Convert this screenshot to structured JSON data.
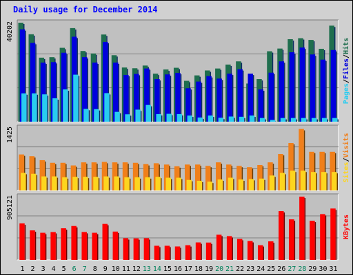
{
  "title": "Daily usage for December 2014",
  "title_color": "#0000ff",
  "colors": {
    "hits": "#1f6e4e",
    "files": "#0000dd",
    "pages": "#29ccf0",
    "visits": "#f07f1a",
    "sites": "#fdd51f",
    "kbytes": "#ff0000",
    "panel_bg": "#c0c0c0",
    "grid": "#808080"
  },
  "chart_data": [
    {
      "type": "bar",
      "title": "Daily usage for December 2014",
      "categories": [
        "1",
        "2",
        "3",
        "4",
        "5",
        "6",
        "7",
        "8",
        "9",
        "10",
        "11",
        "12",
        "13",
        "14",
        "15",
        "16",
        "17",
        "18",
        "19",
        "20",
        "21",
        "22",
        "23",
        "24",
        "25",
        "26",
        "27",
        "28",
        "29",
        "30",
        "31"
      ],
      "weekend_days": [
        "6",
        "7",
        "13",
        "14",
        "20",
        "21",
        "27",
        "28"
      ],
      "ymax_label": "40202",
      "ylim": [
        0,
        40202
      ],
      "grid": true,
      "legend": "right (vertical)",
      "legend_labels": [
        "Pages",
        "/",
        "Files",
        "/",
        "Hits"
      ],
      "series": [
        {
          "name": "Hits",
          "values": [
            40200,
            35500,
            26000,
            26200,
            30000,
            38000,
            28700,
            27700,
            35400,
            27000,
            22000,
            21700,
            22800,
            19500,
            21200,
            21900,
            16600,
            18800,
            20800,
            21600,
            23200,
            24500,
            15500,
            17300,
            28600,
            29700,
            33500,
            33900,
            33200,
            29600,
            39000
          ]
        },
        {
          "name": "Files",
          "values": [
            37500,
            32000,
            24000,
            24200,
            28000,
            34500,
            26200,
            24000,
            32400,
            24000,
            19000,
            19400,
            21600,
            17300,
            19200,
            19800,
            13600,
            16300,
            18500,
            17500,
            19500,
            21300,
            19500,
            13100,
            19900,
            24500,
            28200,
            30100,
            27300,
            25200,
            29100
          ]
        },
        {
          "name": "Pages",
          "values": [
            11500,
            11500,
            11100,
            9500,
            13100,
            19100,
            5200,
            5100,
            11600,
            4000,
            3000,
            4900,
            6800,
            3100,
            3200,
            3100,
            2500,
            1700,
            2500,
            1600,
            2100,
            2000,
            2500,
            1500,
            700,
            1500,
            1500,
            1500,
            1500,
            1500,
            1500
          ]
        }
      ]
    },
    {
      "type": "bar",
      "ymax_label": "1425",
      "ylim": [
        0,
        1425
      ],
      "grid": true,
      "legend": "right (vertical)",
      "legend_labels": [
        "Sites",
        "/",
        "Visits"
      ],
      "series": [
        {
          "name": "Visits",
          "values": [
            820,
            780,
            690,
            630,
            630,
            570,
            640,
            640,
            650,
            640,
            640,
            630,
            600,
            620,
            590,
            550,
            590,
            590,
            560,
            640,
            590,
            560,
            530,
            580,
            640,
            830,
            1080,
            1400,
            880,
            880,
            880
          ]
        },
        {
          "name": "Sites",
          "values": [
            400,
            380,
            320,
            320,
            300,
            310,
            310,
            310,
            320,
            320,
            300,
            300,
            300,
            310,
            290,
            290,
            240,
            220,
            200,
            250,
            290,
            250,
            260,
            270,
            340,
            400,
            450,
            450,
            420,
            420,
            420
          ]
        }
      ]
    },
    {
      "type": "bar",
      "ymax_label": "905121",
      "ylim": [
        0,
        905121
      ],
      "grid": true,
      "legend": "right (vertical)",
      "legend_labels": [
        "KBytes"
      ],
      "series": [
        {
          "name": "KBytes",
          "values": [
            522000,
            422000,
            388000,
            398000,
            452000,
            485000,
            399000,
            388000,
            515000,
            405000,
            310000,
            308000,
            310000,
            202000,
            202000,
            192000,
            210000,
            250000,
            248000,
            360000,
            340000,
            300000,
            270000,
            210000,
            265000,
            698000,
            580000,
            910000,
            560000,
            655000,
            735000
          ]
        }
      ]
    }
  ]
}
